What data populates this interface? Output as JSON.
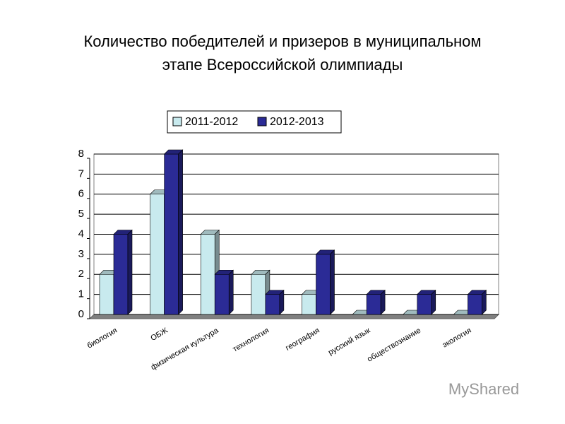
{
  "chart_data": {
    "type": "bar3d",
    "title": [
      "Количество победителей и призеров в муниципальном",
      "этапе Всероссийской олимпиады"
    ],
    "categories": [
      "биология",
      "ОБЖ",
      "физическая культура",
      "технология",
      "география",
      "русский язык",
      "обществознание",
      "экология"
    ],
    "series": [
      {
        "name": "2011-2012",
        "color": "#c8eaee",
        "values": [
          2,
          6,
          4,
          2,
          1,
          0,
          0,
          0
        ]
      },
      {
        "name": "2012-2013",
        "color": "#2b2b96",
        "values": [
          4,
          8,
          2,
          1,
          3,
          1,
          1,
          1
        ]
      }
    ],
    "ylim": [
      0,
      8
    ],
    "yticks": [
      0,
      1,
      2,
      3,
      4,
      5,
      6,
      7,
      8
    ],
    "grid": true,
    "legend": "top",
    "watermark": "MyShared"
  }
}
